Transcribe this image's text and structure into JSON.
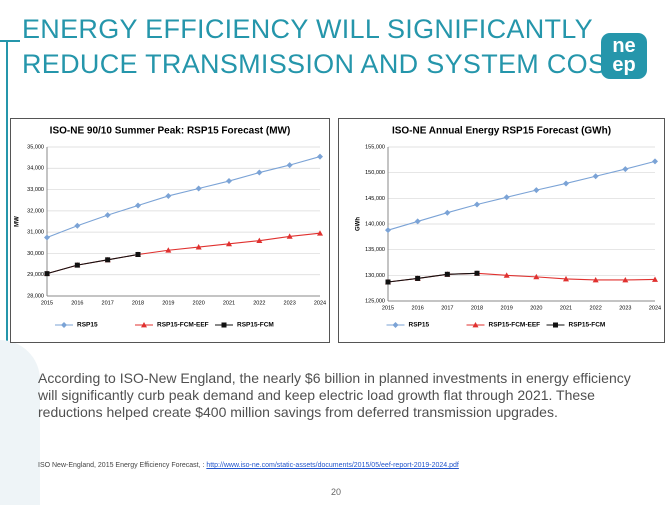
{
  "title": [
    "ENERGY EFFICIENCY WILL SIGNIFICANTLY",
    "REDUCE TRANSMISSION AND SYSTEM COSTS"
  ],
  "logo": [
    "ne",
    "ep"
  ],
  "body": "According to ISO-New England, the nearly $6 billion in planned investments in energy efficiency will significantly curb peak demand and keep electric load growth flat through 2021. These reductions helped create $400 million savings from deferred transmission upgrades.",
  "source": {
    "text": "ISO New-England, 2015 Energy Efficiency Forecast, : ",
    "url": "http://www.iso-ne.com/static-assets/documents/2015/05/eef-report-2019-2024.pdf"
  },
  "page_number": "20",
  "chart_data": [
    {
      "type": "line",
      "title": "ISO-NE 90/10 Summer Peak: RSP15 Forecast (MW)",
      "y_label": "MW",
      "categories": [
        "2015",
        "2016",
        "2017",
        "2018",
        "2019",
        "2020",
        "2021",
        "2022",
        "2023",
        "2024"
      ],
      "ylim": [
        28000,
        35000
      ],
      "yticks": [
        {
          "value": 28000,
          "label": "28,000"
        },
        {
          "value": 29000,
          "label": "29,000"
        },
        {
          "value": 30000,
          "label": "30,000"
        },
        {
          "value": 31000,
          "label": "31,000"
        },
        {
          "value": 32000,
          "label": "32,000"
        },
        {
          "value": 33000,
          "label": "33,000"
        },
        {
          "value": 34000,
          "label": "34,000"
        },
        {
          "value": 35000,
          "label": "35,000"
        }
      ],
      "grid": true,
      "legend": "bottom",
      "series": [
        {
          "name": "RSP15",
          "color": "#7ba3d6",
          "marker": "diamond",
          "values": [
            30750,
            31300,
            31800,
            32250,
            32700,
            33050,
            33400,
            33800,
            34150,
            34550
          ]
        },
        {
          "name": "RSP15-FCM-EEF",
          "color": "#e0312f",
          "marker": "triangle",
          "values": [
            29050,
            29450,
            29700,
            29950,
            30150,
            30300,
            30450,
            30600,
            30800,
            30950
          ]
        },
        {
          "name": "RSP15-FCM",
          "color": "#111111",
          "marker": "square",
          "values": [
            29050,
            29450,
            29700,
            29950,
            null,
            null,
            null,
            null,
            null,
            null
          ]
        }
      ]
    },
    {
      "type": "line",
      "title": "ISO-NE Annual Energy RSP15 Forecast (GWh)",
      "y_label": "GWh",
      "categories": [
        "2015",
        "2016",
        "2017",
        "2018",
        "2019",
        "2020",
        "2021",
        "2022",
        "2023",
        "2024"
      ],
      "ylim": [
        125000,
        155000
      ],
      "yticks": [
        {
          "value": 125000,
          "label": "125,000"
        },
        {
          "value": 130000,
          "label": "130,000"
        },
        {
          "value": 135000,
          "label": "135,000"
        },
        {
          "value": 140000,
          "label": "140,000"
        },
        {
          "value": 145000,
          "label": "145,000"
        },
        {
          "value": 150000,
          "label": "150,000"
        },
        {
          "value": 155000,
          "label": "155,000"
        }
      ],
      "grid": true,
      "legend": "bottom",
      "series": [
        {
          "name": "RSP15",
          "color": "#7ba3d6",
          "marker": "diamond",
          "values": [
            138800,
            140500,
            142200,
            143800,
            145200,
            146600,
            147900,
            149300,
            150700,
            152200
          ]
        },
        {
          "name": "RSP15-FCM-EEF",
          "color": "#e0312f",
          "marker": "triangle",
          "values": [
            128700,
            129400,
            130200,
            130400,
            130000,
            129700,
            129300,
            129100,
            129100,
            129200
          ]
        },
        {
          "name": "RSP15-FCM",
          "color": "#111111",
          "marker": "square",
          "values": [
            128700,
            129400,
            130200,
            130400,
            null,
            null,
            null,
            null,
            null,
            null
          ]
        }
      ]
    }
  ]
}
